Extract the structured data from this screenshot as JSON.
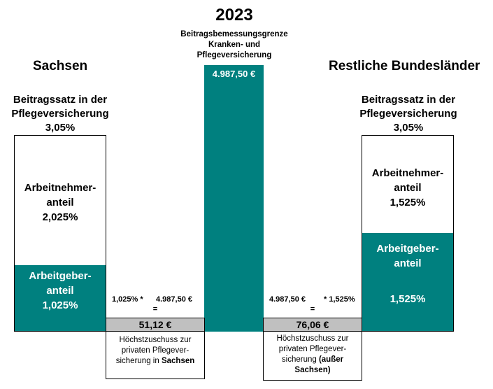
{
  "chart_data": {
    "type": "bar",
    "title": "2023",
    "subtitle": "Beitragsbemessungsgrenze Kranken- und Pflegeversicherung",
    "center_value": "4.987,50 €",
    "left": {
      "heading": "Sachsen",
      "rate_label_line1": "Beitragssatz in der",
      "rate_label_line2": "Pflegeversicherung",
      "rate_value": "3,05%",
      "segments": [
        {
          "name_line1": "Arbeitnehmer-",
          "name_line2": "anteil",
          "value_label": "2,025%",
          "value": 2.025
        },
        {
          "name_line1": "Arbeitgeber-",
          "name_line2": "anteil",
          "value_label": "1,025%",
          "value": 1.025
        }
      ],
      "formula_left": "1,025% *",
      "formula_right": "4.987,50 €",
      "equals": "=",
      "result": "51,12 €",
      "note_line1": "Höchstzuschuss zur",
      "note_line2": "privaten Pflegever-",
      "note_line3a": "sicherung in ",
      "note_line3b": "Sachsen",
      "note_line4": ""
    },
    "right": {
      "heading": "Restliche Bundesländer",
      "rate_label_line1": "Beitragssatz in der",
      "rate_label_line2": "Pflegeversicherung",
      "rate_value": "3,05%",
      "segments": [
        {
          "name_line1": "Arbeitnehmer-",
          "name_line2": "anteil",
          "value_label": "1,525%",
          "value": 1.525
        },
        {
          "name_line1": "Arbeitgeber-",
          "name_line2": "anteil",
          "value_label": "1,525%",
          "value": 1.525
        }
      ],
      "formula_left": "4.987,50 €",
      "formula_right": "* 1,525%",
      "equals": "=",
      "result": "76,06 €",
      "note_line1": "Höchstzuschuss zur",
      "note_line2": "privaten Pflegever-",
      "note_line3a": "sicherung ",
      "note_line3b": "(außer",
      "note_line4": "Sachsen)"
    },
    "colors": {
      "accent": "#00807f",
      "result_bg": "#c0c0c0"
    }
  }
}
